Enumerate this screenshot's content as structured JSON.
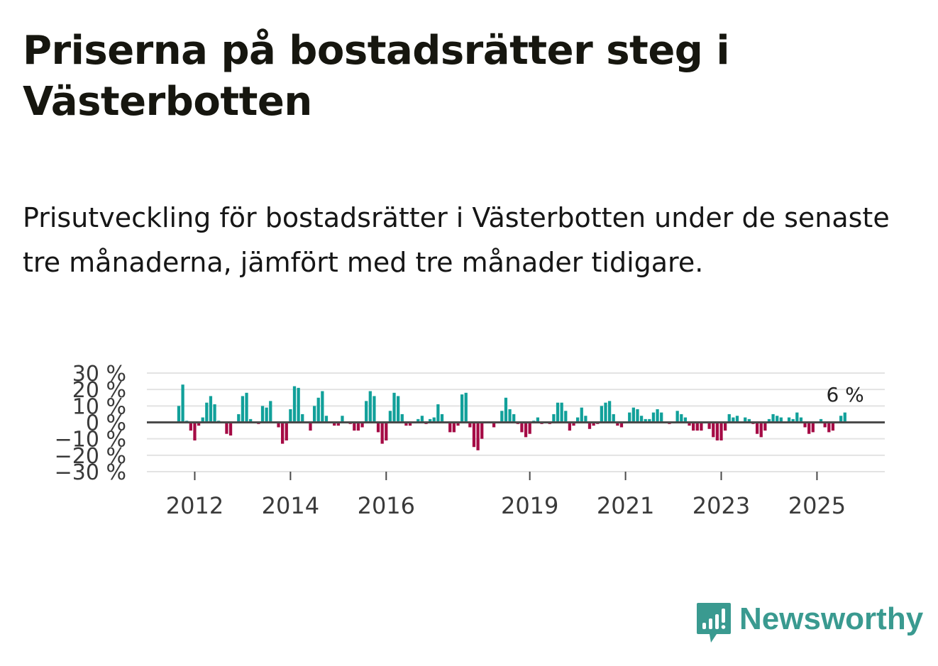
{
  "header": {
    "title": "Priserna på bostadsrätter steg i Västerbotten",
    "subtitle": "Prisutveckling för bostadsrätter i Västerbotten under de senaste tre månaderna, jämfört med tre månader tidigare."
  },
  "brand": {
    "name": "Newsworthy",
    "color": "#3a9a90"
  },
  "colors": {
    "positive": "#11a09a",
    "negative": "#a50b45",
    "grid": "#e3e3e3",
    "zero_line": "#4a4a4a"
  },
  "chart_data": {
    "type": "bar",
    "title": "Priserna på bostadsrätter steg i Västerbotten",
    "xlabel": "",
    "ylabel": "",
    "ylim": [
      -30,
      30
    ],
    "yticks": [
      30,
      20,
      10,
      0,
      -10,
      -20,
      -30
    ],
    "ytick_labels": [
      "30 %",
      "20 %",
      "10 %",
      "0 %",
      "−10 %",
      "−20 %",
      "−30 %"
    ],
    "xticks": [
      2012,
      2014,
      2016,
      2019,
      2021,
      2023,
      2025
    ],
    "xtick_labels": [
      "2012",
      "2014",
      "2016",
      "2019",
      "2021",
      "2023",
      "2025"
    ],
    "x_start": "2011-01",
    "x_end": "2026-06",
    "first_bar": "2011-09",
    "last_label": "6 %",
    "grid": true,
    "values": [
      10,
      23,
      1,
      -5,
      -11,
      -2,
      3,
      12,
      16,
      11,
      1,
      0,
      -7,
      -8,
      0,
      5,
      16,
      18,
      2,
      0,
      -1,
      10,
      9,
      13,
      0,
      -3,
      -13,
      -11,
      8,
      22,
      21,
      5,
      0,
      -5,
      10,
      15,
      19,
      4,
      0,
      -2,
      -2,
      4,
      0,
      -1,
      -5,
      -5,
      -3,
      13,
      19,
      16,
      -6,
      -13,
      -11,
      7,
      18,
      16,
      5,
      -2,
      -2,
      0,
      2,
      4,
      -1,
      2,
      3,
      11,
      5,
      0,
      -6,
      -6,
      -2,
      17,
      18,
      -3,
      -15,
      -17,
      -10,
      0,
      0,
      -3,
      0,
      7,
      15,
      8,
      5,
      -1,
      -6,
      -9,
      -7,
      1,
      3,
      -1,
      0,
      -1,
      5,
      12,
      12,
      7,
      -5,
      -2,
      3,
      9,
      4,
      -4,
      -2,
      -1,
      10,
      12,
      13,
      5,
      -2,
      -3,
      0,
      6,
      9,
      8,
      4,
      2,
      2,
      6,
      8,
      6,
      0,
      -1,
      0,
      7,
      5,
      3,
      -2,
      -5,
      -5,
      -5,
      0,
      -4,
      -9,
      -11,
      -11,
      -5,
      5,
      3,
      4,
      0,
      3,
      2,
      -1,
      -7,
      -9,
      -5,
      2,
      5,
      4,
      3,
      0,
      3,
      2,
      6,
      3,
      -3,
      -7,
      -6,
      0,
      2,
      -3,
      -6,
      -5,
      0,
      4,
      6
    ]
  }
}
